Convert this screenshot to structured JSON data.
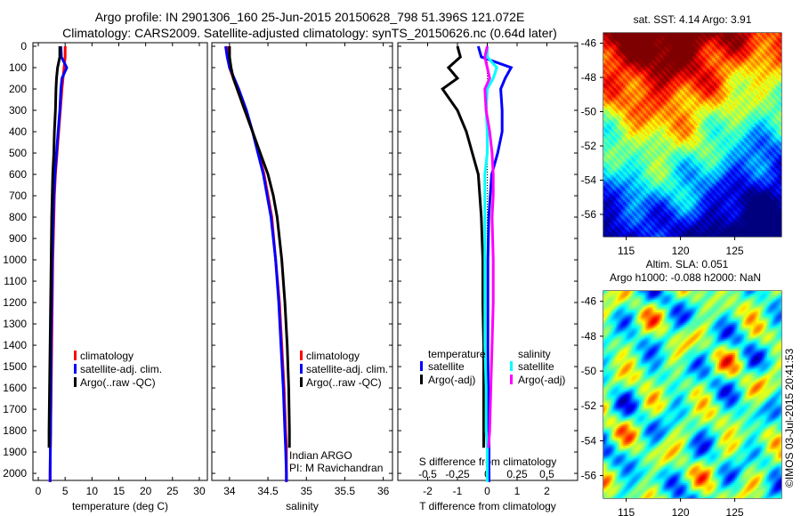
{
  "title_line1": "Argo profile: IN 2901306_160 25-Jun-2015 20150628_798 51.396S 121.072E",
  "title_line2": "Climatology: CARS2009. Satellite-adjusted climatology: synTS_20150626.nc (0.64d later)",
  "credit": "©IMOS 03-Jul-2015 20:41:53",
  "colors": {
    "climatology": "#ff0000",
    "satellite": "#0000ff",
    "argo": "#000000",
    "sal_satellite": "#00ffff",
    "sal_argo": "#ff00ff"
  },
  "chart_data": [
    {
      "type": "line",
      "id": "temperature",
      "xlabel": "temperature (deg C)",
      "xlim": [
        -1,
        31.5
      ],
      "ylim": [
        0,
        2033
      ],
      "xticks": [
        0,
        5,
        10,
        15,
        20,
        25,
        30
      ],
      "yticks": [
        0,
        100,
        200,
        300,
        400,
        500,
        600,
        700,
        800,
        900,
        1000,
        1100,
        1200,
        1300,
        1400,
        1500,
        1600,
        1700,
        1800,
        1900,
        2000
      ],
      "legend": [
        "climatology",
        "satellite-adj. clim.",
        "Argo(..raw -QC)"
      ],
      "depth": [
        0,
        50,
        100,
        150,
        200,
        300,
        400,
        500,
        600,
        700,
        800,
        1000,
        1200,
        1400,
        1600,
        1800,
        1880,
        2000,
        2040
      ],
      "series": [
        {
          "name": "climatology",
          "color": "#ff0000",
          "values": [
            5,
            5,
            4.8,
            4.6,
            4.4,
            4.1,
            3.8,
            3.5,
            3.2,
            3.0,
            2.9,
            2.7,
            2.6,
            2.5,
            2.4,
            2.3,
            2.25,
            2.2,
            2.2
          ]
        },
        {
          "name": "satellite-adj. clim.",
          "color": "#0000ff",
          "values": [
            4.2,
            4.3,
            5.3,
            4.4,
            4.2,
            4.0,
            3.7,
            3.4,
            3.1,
            2.9,
            2.8,
            2.6,
            2.5,
            2.4,
            2.35,
            2.3,
            2.25,
            2.2,
            2.2
          ]
        },
        {
          "name": "Argo(..raw -QC)",
          "color": "#000000",
          "values": [
            4,
            4,
            3.6,
            3.4,
            3.3,
            3.2,
            3.0,
            2.9,
            2.7,
            2.6,
            2.5,
            2.4,
            2.3,
            2.2,
            2.1,
            2.0,
            2.0,
            null,
            null
          ]
        }
      ]
    },
    {
      "type": "line",
      "id": "salinity",
      "xlabel": "salinity",
      "xlim": [
        33.77,
        36.12
      ],
      "ylim": [
        0,
        2033
      ],
      "xticks": [
        34,
        34.5,
        35,
        35.5,
        36
      ],
      "legend": [
        "climatology",
        "satellite-adj. clim.",
        "Argo(..raw -QC)"
      ],
      "annotation": [
        "Indian ARGO",
        "PI: M Ravichandran"
      ],
      "depth": [
        0,
        50,
        100,
        150,
        200,
        300,
        400,
        500,
        600,
        700,
        800,
        1000,
        1200,
        1400,
        1600,
        1800,
        1880,
        2000,
        2040
      ],
      "series": [
        {
          "name": "climatology",
          "color": "#ff0000",
          "values": [
            33.97,
            33.98,
            34.0,
            34.05,
            34.1,
            34.2,
            34.3,
            34.38,
            34.45,
            34.5,
            34.55,
            34.6,
            34.65,
            34.68,
            34.71,
            34.73,
            34.74,
            34.74,
            34.74
          ]
        },
        {
          "name": "satellite-adj. clim.",
          "color": "#0000ff",
          "values": [
            33.95,
            33.97,
            34.0,
            34.06,
            34.12,
            34.22,
            34.3,
            34.37,
            34.44,
            34.49,
            34.54,
            34.6,
            34.64,
            34.67,
            34.7,
            34.72,
            34.73,
            34.74,
            34.74
          ]
        },
        {
          "name": "Argo(..raw -QC)",
          "color": "#000000",
          "values": [
            34.0,
            34.0,
            34.02,
            34.05,
            34.1,
            34.2,
            34.3,
            34.4,
            34.5,
            34.57,
            34.62,
            34.68,
            34.72,
            34.75,
            34.77,
            34.78,
            34.78,
            null,
            null
          ]
        }
      ]
    },
    {
      "type": "line",
      "id": "difference",
      "xlabel": "T difference from climatology",
      "x2label": "S difference from climatology",
      "xlim": [
        -3,
        3.03
      ],
      "ylim": [
        0,
        2033
      ],
      "xticks": [
        -2,
        -1,
        0,
        1,
        2
      ],
      "x2ticks": [
        -0.5,
        -0.25,
        0,
        0.25,
        0.5
      ],
      "x2ticklabels": [
        "-0.5",
        "-0.25",
        "0",
        "0.25",
        "0.5"
      ],
      "legend_headers": [
        "temperature",
        "salinity"
      ],
      "legend": [
        "satellite",
        "Argo(-adj)",
        "satellite",
        "Argo(-adj)"
      ],
      "depth": [
        0,
        50,
        100,
        150,
        200,
        300,
        400,
        500,
        600,
        700,
        800,
        1000,
        1200,
        1400,
        1600,
        1800,
        1880,
        2000,
        2040
      ],
      "series": [
        {
          "name": "T satellite",
          "color": "#0000ff",
          "scale": "T",
          "values": [
            -0.3,
            -0.2,
            0.8,
            0.6,
            0.45,
            0.5,
            0.5,
            0.35,
            0.15,
            0.1,
            0.05,
            0.02,
            0.02,
            0.02,
            0.03,
            0.05,
            0.06,
            0.06,
            0.06
          ]
        },
        {
          "name": "T Argo(-adj)",
          "color": "#000000",
          "scale": "T",
          "values": [
            -1,
            -0.9,
            -1.3,
            -1.0,
            -1.5,
            -1.0,
            -0.7,
            -0.5,
            -0.3,
            -0.25,
            -0.2,
            -0.15,
            -0.15,
            -0.12,
            -0.12,
            -0.12,
            -0.12,
            null,
            null
          ]
        },
        {
          "name": "S satellite",
          "color": "#00ffff",
          "scale": "S",
          "values": [
            0,
            0,
            0.08,
            0.05,
            0.0,
            -0.01,
            0,
            0,
            -0.02,
            -0.02,
            -0.02,
            -0.02,
            -0.02,
            -0.02,
            -0.01,
            -0.01,
            0,
            0,
            0
          ]
        },
        {
          "name": "S Argo(-adj)",
          "color": "#ff00ff",
          "scale": "S",
          "values": [
            0,
            -0.02,
            0,
            0.02,
            -0.02,
            -0.01,
            0.02,
            0.04,
            0.05,
            0.05,
            0.04,
            0.05,
            0.05,
            0.04,
            0.03,
            0.02,
            0.01,
            null,
            null
          ]
        }
      ]
    },
    {
      "type": "heatmap",
      "id": "sst_map",
      "title": "sat. SST: 4.14 Argo: 3.91",
      "xlim": [
        112.9,
        129.3
      ],
      "ylim": [
        -57.3,
        -45.4
      ],
      "xticks": [
        115,
        120,
        125
      ],
      "yticks": [
        -46,
        -48,
        -50,
        -52,
        -54,
        -56
      ]
    },
    {
      "type": "heatmap",
      "id": "sla_map",
      "title": "Altim. SLA: 0.051",
      "subtitle": "Argo h1000: -0.088 h2000: NaN",
      "xlim": [
        112.9,
        129.3
      ],
      "ylim": [
        -57.3,
        -45.4
      ],
      "xticks": [
        115,
        120,
        125
      ],
      "yticks": [
        -46,
        -48,
        -50,
        -52,
        -54,
        -56
      ]
    }
  ]
}
